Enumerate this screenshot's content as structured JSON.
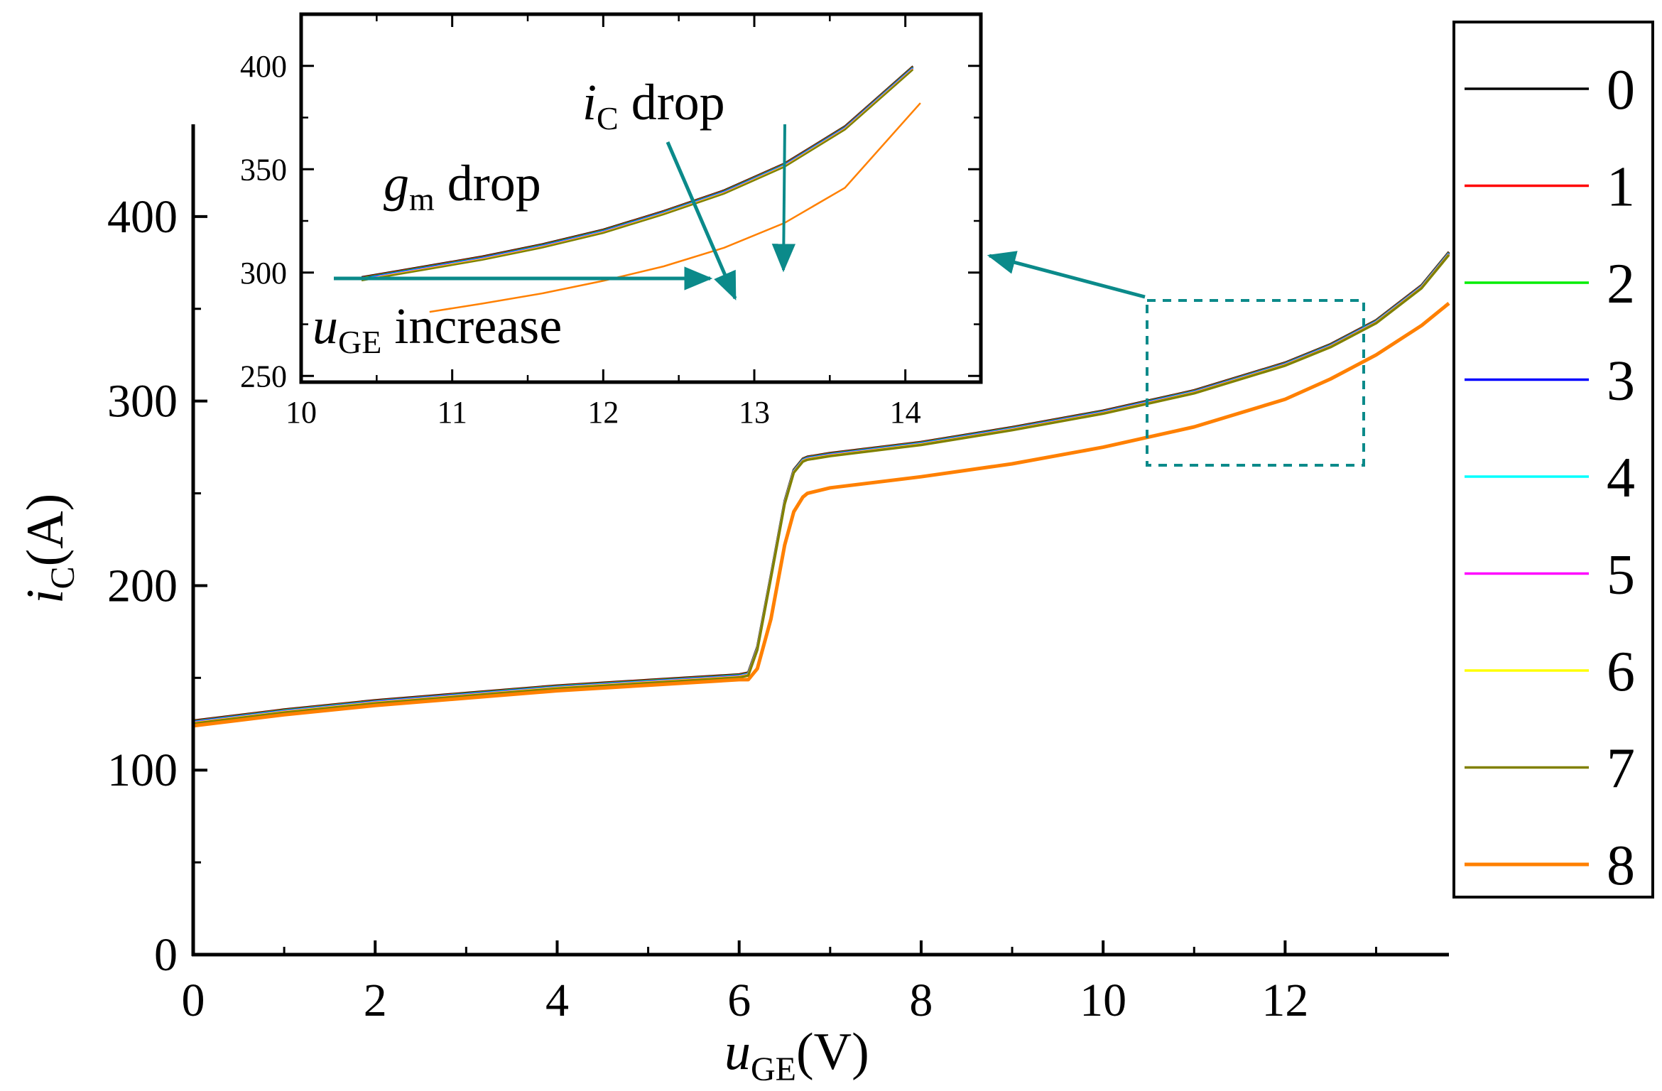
{
  "chart_data": {
    "type": "line",
    "main": {
      "x_axis": {
        "label_var": "u",
        "label_sub": "GE",
        "label_unit": "(V)",
        "range": [
          0,
          13.8
        ],
        "ticks": [
          0,
          2,
          4,
          6,
          8,
          10,
          12
        ],
        "tick_labels": [
          "0",
          "2",
          "4",
          "6",
          "8",
          "10",
          "12"
        ]
      },
      "y_axis": {
        "label_var": "i",
        "label_sub": "C",
        "label_unit": "(A)",
        "range": [
          0,
          450
        ],
        "ticks": [
          0,
          100,
          200,
          300,
          400
        ],
        "tick_labels": [
          "0",
          "100",
          "200",
          "300",
          "400"
        ]
      },
      "grid": false,
      "x": [
        0,
        1,
        2,
        3,
        4,
        5,
        6,
        6.1,
        6.2,
        6.35,
        6.5,
        6.6,
        6.7,
        6.75,
        7,
        8,
        9,
        10,
        11,
        12,
        12.5,
        13,
        13.5,
        13.8
      ],
      "group_a_values": [
        126,
        132,
        137,
        141,
        145,
        148,
        151,
        152,
        166,
        205,
        245,
        262,
        268,
        269,
        271,
        277,
        285,
        294,
        305,
        320,
        330,
        343,
        362,
        380
      ],
      "series_8_values": [
        124,
        130,
        135,
        139,
        143,
        146,
        149,
        149,
        155,
        182,
        222,
        240,
        248,
        250,
        253,
        259,
        266,
        275,
        286,
        301,
        312,
        325,
        341,
        353
      ]
    },
    "inset": {
      "x_axis": {
        "range": [
          10,
          14.5
        ],
        "ticks": [
          10,
          11,
          12,
          13,
          14
        ],
        "tick_labels": [
          "10",
          "11",
          "12",
          "13",
          "14"
        ]
      },
      "y_axis": {
        "range": [
          247,
          425
        ],
        "ticks": [
          250,
          300,
          350,
          400
        ],
        "tick_labels": [
          "250",
          "300",
          "350",
          "400"
        ]
      },
      "group_a_x": [
        10.4,
        10.8,
        11.2,
        11.6,
        12,
        12.4,
        12.8,
        13.2,
        13.6,
        14.05
      ],
      "group_a_values": [
        297,
        302,
        307,
        313,
        320,
        329,
        339,
        352,
        370,
        399
      ],
      "series_8_x": [
        10.85,
        11.2,
        11.6,
        12,
        12.4,
        12.8,
        13.2,
        13.6,
        14.1
      ],
      "series_8_values": [
        281,
        285,
        290,
        296,
        303,
        312,
        324,
        341,
        382
      ]
    },
    "series": [
      {
        "name": "0",
        "color": "#000000"
      },
      {
        "name": "1",
        "color": "#ff0000"
      },
      {
        "name": "2",
        "color": "#00ee00"
      },
      {
        "name": "3",
        "color": "#0000ff"
      },
      {
        "name": "4",
        "color": "#00ffff"
      },
      {
        "name": "5",
        "color": "#ff00ff"
      },
      {
        "name": "6",
        "color": "#ffff00"
      },
      {
        "name": "7",
        "color": "#808000"
      },
      {
        "name": "8",
        "color": "#ff8000"
      }
    ],
    "annotations": {
      "ic_drop": {
        "var": "i",
        "sub": "C",
        "text": " drop"
      },
      "gm_drop": {
        "var": "g",
        "sub": "m",
        "text": " drop"
      },
      "uge_increase": {
        "var": "u",
        "sub": "GE",
        "text": " increase"
      },
      "arrow_color": "#0b8a8a"
    },
    "legend": {
      "position": "right",
      "entries": [
        "0",
        "1",
        "2",
        "3",
        "4",
        "5",
        "6",
        "7",
        "8"
      ]
    }
  }
}
